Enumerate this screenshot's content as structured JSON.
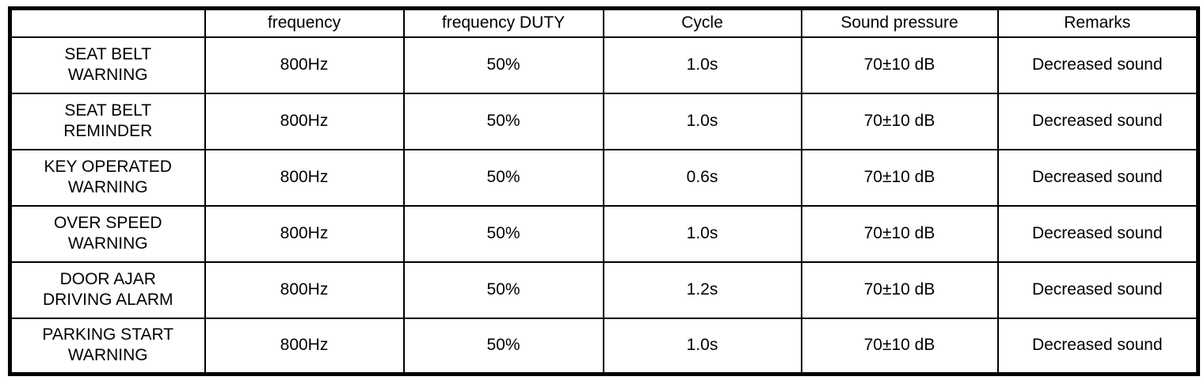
{
  "colors": {
    "border": "#000000",
    "background": "#ffffff",
    "text": "#000000"
  },
  "table": {
    "headers": [
      "",
      "frequency",
      "frequency DUTY",
      "Cycle",
      "Sound pressure",
      "Remarks"
    ],
    "rows": [
      [
        "SEAT BELT\nWARNING",
        "800Hz",
        "50%",
        "1.0s",
        "70±10 dB",
        "Decreased sound"
      ],
      [
        "SEAT BELT\nREMINDER",
        "800Hz",
        "50%",
        "1.0s",
        "70±10 dB",
        "Decreased sound"
      ],
      [
        "KEY OPERATED\nWARNING",
        "800Hz",
        "50%",
        "0.6s",
        "70±10 dB",
        "Decreased sound"
      ],
      [
        "OVER SPEED\nWARNING",
        "800Hz",
        "50%",
        "1.0s",
        "70±10 dB",
        "Decreased sound"
      ],
      [
        "DOOR AJAR\nDRIVING ALARM",
        "800Hz",
        "50%",
        "1.2s",
        "70±10 dB",
        "Decreased sound"
      ],
      [
        "PARKING START\nWARNING",
        "800Hz",
        "50%",
        "1.0s",
        "70±10 dB",
        "Decreased sound"
      ]
    ]
  }
}
